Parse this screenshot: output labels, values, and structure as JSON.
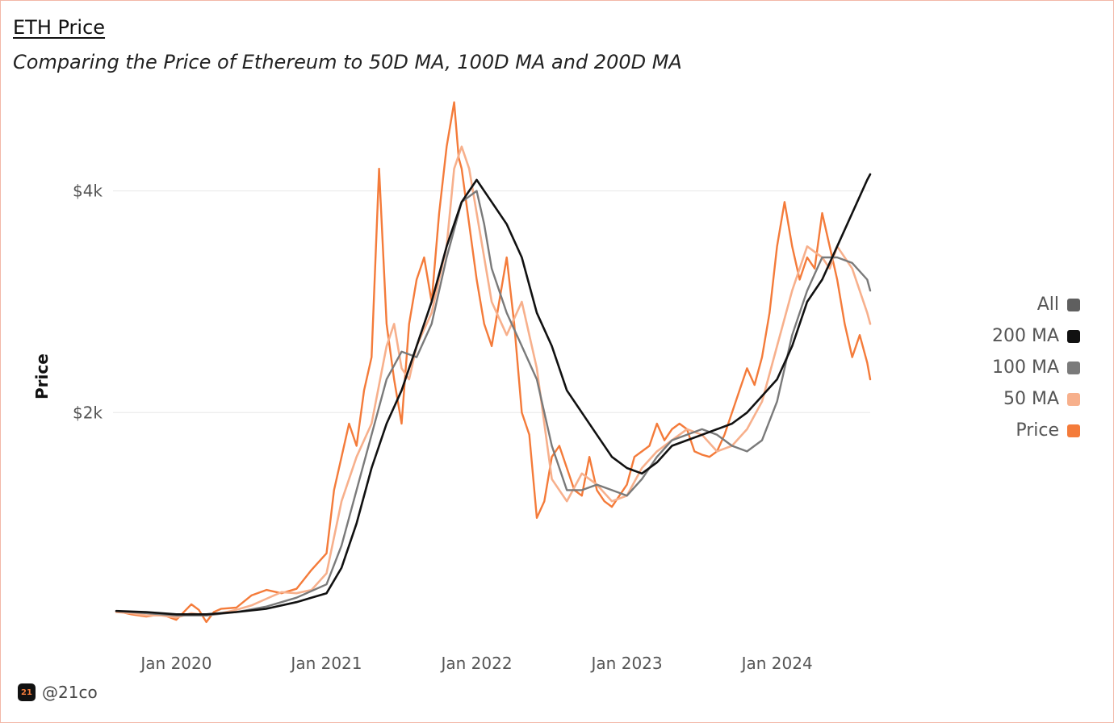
{
  "header": {
    "title": "ETH Price",
    "subtitle": "Comparing the Price of Ethereum to 50D MA, 100D MA and 200D MA"
  },
  "footer": {
    "logo_text": "21",
    "handle": "@21co"
  },
  "colors": {
    "price": "#f47b3a",
    "ma50": "#f7b08c",
    "ma100": "#7a7a7a",
    "ma200": "#111111",
    "all": "#5f5f5f",
    "grid": "#e8e8e8"
  },
  "legend": [
    {
      "label": "All",
      "color": "#5f5f5f"
    },
    {
      "label": "200 MA",
      "color": "#111111"
    },
    {
      "label": "100 MA",
      "color": "#7a7a7a"
    },
    {
      "label": "50 MA",
      "color": "#f7b08c"
    },
    {
      "label": "Price",
      "color": "#f47b3a"
    }
  ],
  "chart_data": {
    "type": "line",
    "title": "ETH Price",
    "subtitle": "Comparing the Price of Ethereum to 50D MA, 100D MA and 200D MA",
    "xlabel": "",
    "ylabel": "Price",
    "x_range": [
      2019.6,
      2024.62
    ],
    "ylim": [
      0,
      4900
    ],
    "y_ticks": [
      {
        "value": 2000,
        "label": "$2k"
      },
      {
        "value": 4000,
        "label": "$4k"
      }
    ],
    "x_ticks": [
      {
        "value": 2020.0,
        "label": "Jan 2020"
      },
      {
        "value": 2021.0,
        "label": "Jan 2021"
      },
      {
        "value": 2022.0,
        "label": "Jan 2022"
      },
      {
        "value": 2023.0,
        "label": "Jan 2023"
      },
      {
        "value": 2024.0,
        "label": "Jan 2024"
      }
    ],
    "grid": true,
    "legend_position": "right",
    "series": [
      {
        "name": "Price",
        "x": [
          2019.6,
          2019.7,
          2019.8,
          2019.9,
          2020.0,
          2020.1,
          2020.15,
          2020.2,
          2020.25,
          2020.3,
          2020.4,
          2020.5,
          2020.6,
          2020.7,
          2020.8,
          2020.9,
          2021.0,
          2021.05,
          2021.1,
          2021.15,
          2021.2,
          2021.25,
          2021.3,
          2021.35,
          2021.4,
          2021.45,
          2021.5,
          2021.55,
          2021.6,
          2021.65,
          2021.7,
          2021.75,
          2021.8,
          2021.85,
          2021.88,
          2021.9,
          2021.95,
          2022.0,
          2022.05,
          2022.1,
          2022.15,
          2022.2,
          2022.25,
          2022.3,
          2022.35,
          2022.4,
          2022.45,
          2022.5,
          2022.55,
          2022.6,
          2022.65,
          2022.7,
          2022.75,
          2022.8,
          2022.85,
          2022.9,
          2022.95,
          2023.0,
          2023.05,
          2023.1,
          2023.15,
          2023.2,
          2023.25,
          2023.3,
          2023.35,
          2023.4,
          2023.45,
          2023.5,
          2023.55,
          2023.6,
          2023.65,
          2023.7,
          2023.75,
          2023.8,
          2023.85,
          2023.9,
          2023.95,
          2024.0,
          2024.05,
          2024.1,
          2024.15,
          2024.2,
          2024.25,
          2024.3,
          2024.35,
          2024.4,
          2024.45,
          2024.5,
          2024.55,
          2024.6,
          2024.62
        ],
        "values": [
          210,
          180,
          160,
          180,
          130,
          270,
          220,
          110,
          200,
          230,
          240,
          350,
          400,
          370,
          410,
          580,
          730,
          1300,
          1600,
          1900,
          1700,
          2200,
          2500,
          4200,
          2800,
          2300,
          1900,
          2800,
          3200,
          3400,
          3000,
          3800,
          4400,
          4800,
          4300,
          4200,
          3700,
          3200,
          2800,
          2600,
          3000,
          3400,
          2800,
          2000,
          1800,
          1050,
          1200,
          1600,
          1700,
          1500,
          1300,
          1250,
          1600,
          1300,
          1200,
          1150,
          1250,
          1350,
          1600,
          1650,
          1700,
          1900,
          1750,
          1850,
          1900,
          1850,
          1650,
          1620,
          1600,
          1650,
          1800,
          2000,
          2200,
          2400,
          2250,
          2500,
          2900,
          3500,
          3900,
          3500,
          3200,
          3400,
          3300,
          3800,
          3500,
          3200,
          2800,
          2500,
          2700,
          2450,
          2300
        ]
      },
      {
        "name": "50 MA",
        "x": [
          2019.6,
          2019.7,
          2019.8,
          2019.9,
          2020.0,
          2020.1,
          2020.2,
          2020.3,
          2020.4,
          2020.5,
          2020.6,
          2020.7,
          2020.8,
          2020.9,
          2021.0,
          2021.1,
          2021.2,
          2021.3,
          2021.4,
          2021.45,
          2021.5,
          2021.55,
          2021.6,
          2021.7,
          2021.8,
          2021.85,
          2021.9,
          2021.95,
          2022.0,
          2022.1,
          2022.2,
          2022.3,
          2022.4,
          2022.5,
          2022.6,
          2022.7,
          2022.8,
          2022.9,
          2023.0,
          2023.1,
          2023.2,
          2023.3,
          2023.4,
          2023.5,
          2023.6,
          2023.7,
          2023.8,
          2023.9,
          2024.0,
          2024.1,
          2024.2,
          2024.3,
          2024.35,
          2024.4,
          2024.5,
          2024.6,
          2024.62
        ],
        "values": [
          200,
          190,
          170,
          170,
          150,
          190,
          170,
          190,
          220,
          260,
          320,
          380,
          370,
          400,
          550,
          1200,
          1600,
          1900,
          2600,
          2800,
          2400,
          2300,
          2600,
          2900,
          3500,
          4200,
          4400,
          4200,
          3800,
          3000,
          2700,
          3000,
          2400,
          1400,
          1200,
          1450,
          1350,
          1200,
          1250,
          1500,
          1650,
          1750,
          1850,
          1800,
          1650,
          1700,
          1850,
          2100,
          2600,
          3100,
          3500,
          3400,
          3300,
          3500,
          3300,
          2900,
          2800
        ]
      },
      {
        "name": "100 MA",
        "x": [
          2019.6,
          2019.8,
          2020.0,
          2020.2,
          2020.4,
          2020.6,
          2020.8,
          2021.0,
          2021.1,
          2021.2,
          2021.3,
          2021.4,
          2021.5,
          2021.6,
          2021.7,
          2021.8,
          2021.9,
          2022.0,
          2022.05,
          2022.1,
          2022.2,
          2022.3,
          2022.4,
          2022.5,
          2022.6,
          2022.7,
          2022.8,
          2022.9,
          2023.0,
          2023.1,
          2023.2,
          2023.3,
          2023.4,
          2023.5,
          2023.6,
          2023.7,
          2023.8,
          2023.9,
          2024.0,
          2024.1,
          2024.2,
          2024.3,
          2024.4,
          2024.5,
          2024.6,
          2024.62
        ],
        "values": [
          210,
          190,
          170,
          170,
          200,
          250,
          330,
          450,
          800,
          1300,
          1800,
          2300,
          2550,
          2500,
          2800,
          3400,
          3900,
          4000,
          3700,
          3300,
          2900,
          2600,
          2300,
          1700,
          1300,
          1300,
          1350,
          1300,
          1250,
          1400,
          1600,
          1750,
          1800,
          1850,
          1800,
          1700,
          1650,
          1750,
          2100,
          2700,
          3100,
          3400,
          3400,
          3350,
          3200,
          3100
        ]
      },
      {
        "name": "200 MA",
        "x": [
          2019.6,
          2019.8,
          2020.0,
          2020.2,
          2020.4,
          2020.6,
          2020.8,
          2021.0,
          2021.1,
          2021.2,
          2021.3,
          2021.4,
          2021.5,
          2021.6,
          2021.7,
          2021.8,
          2021.9,
          2022.0,
          2022.1,
          2022.2,
          2022.3,
          2022.4,
          2022.5,
          2022.6,
          2022.7,
          2022.8,
          2022.9,
          2023.0,
          2023.1,
          2023.2,
          2023.3,
          2023.4,
          2023.5,
          2023.6,
          2023.7,
          2023.8,
          2023.9,
          2024.0,
          2024.1,
          2024.2,
          2024.3,
          2024.4,
          2024.5,
          2024.6,
          2024.62
        ],
        "values": [
          210,
          200,
          180,
          180,
          200,
          230,
          290,
          370,
          600,
          1000,
          1500,
          1900,
          2200,
          2600,
          3000,
          3500,
          3900,
          4100,
          3900,
          3700,
          3400,
          2900,
          2600,
          2200,
          2000,
          1800,
          1600,
          1500,
          1450,
          1550,
          1700,
          1750,
          1800,
          1850,
          1900,
          2000,
          2150,
          2300,
          2600,
          3000,
          3200,
          3500,
          3800,
          4100,
          4150
        ]
      }
    ]
  }
}
